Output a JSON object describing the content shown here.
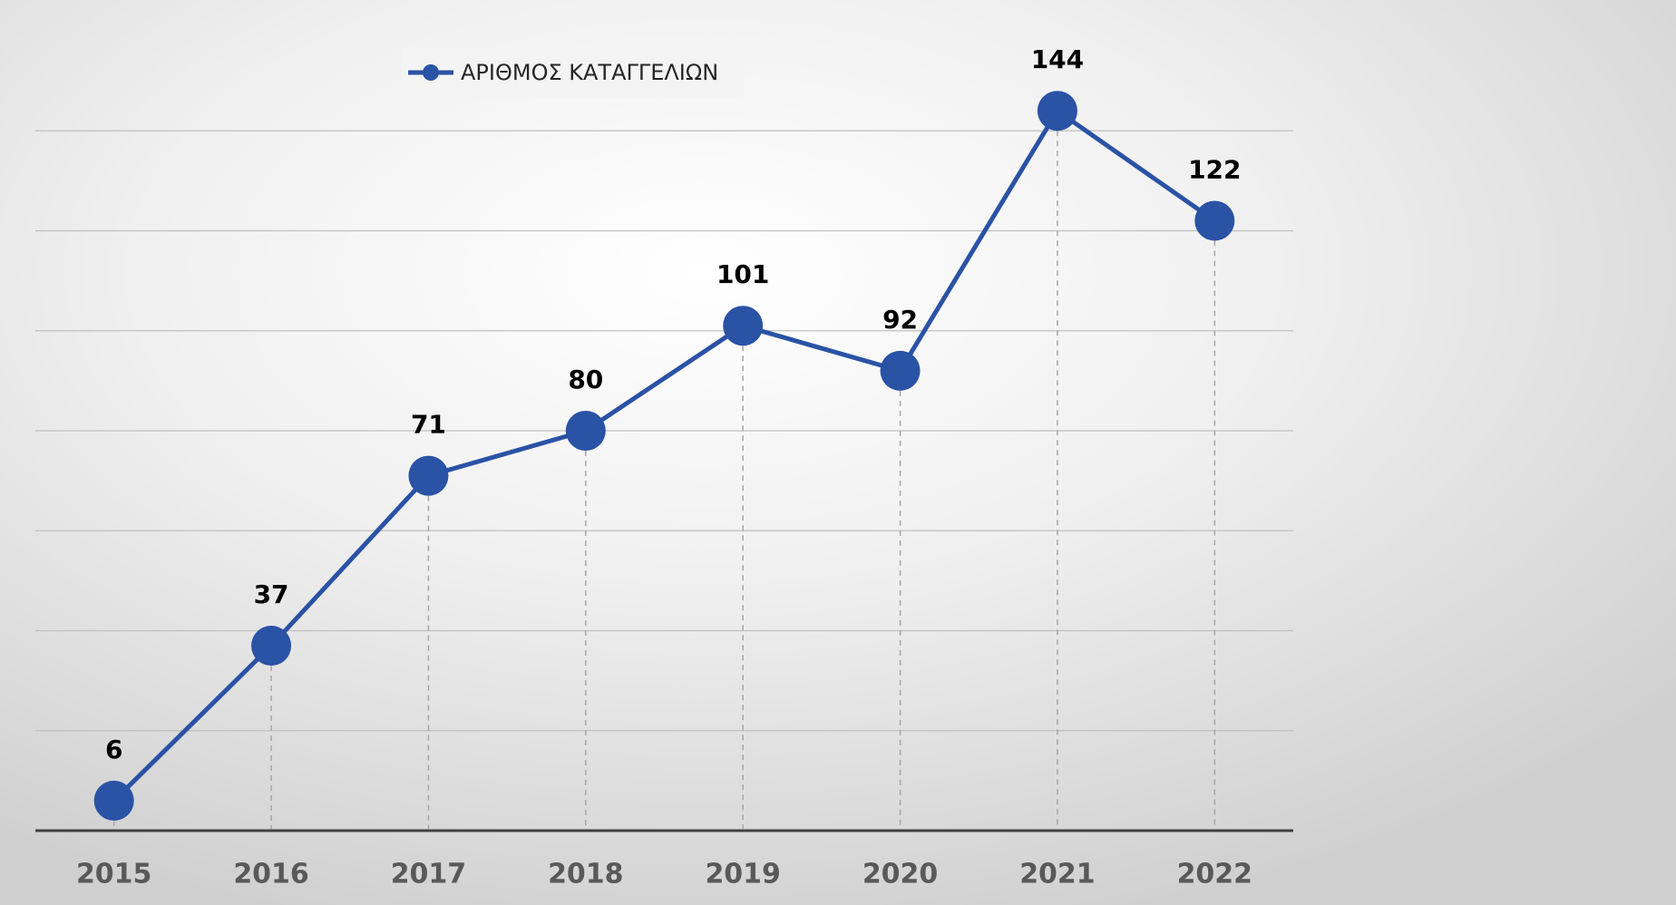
{
  "chart_data": {
    "type": "line",
    "categories": [
      "2015",
      "2016",
      "2017",
      "2018",
      "2019",
      "2020",
      "2021",
      "2022"
    ],
    "series": [
      {
        "name": "ΑΡΙΘΜΟΣ ΚΑΤΑΓΓΕΛΙΩΝ",
        "color": "#2a52a5",
        "values": [
          6,
          37,
          71,
          80,
          101,
          92,
          144,
          122
        ]
      }
    ],
    "ylim": [
      0,
      160
    ],
    "yticks": [
      0,
      20,
      40,
      60,
      80,
      100,
      120,
      140
    ],
    "grid": true,
    "legend": "top"
  }
}
